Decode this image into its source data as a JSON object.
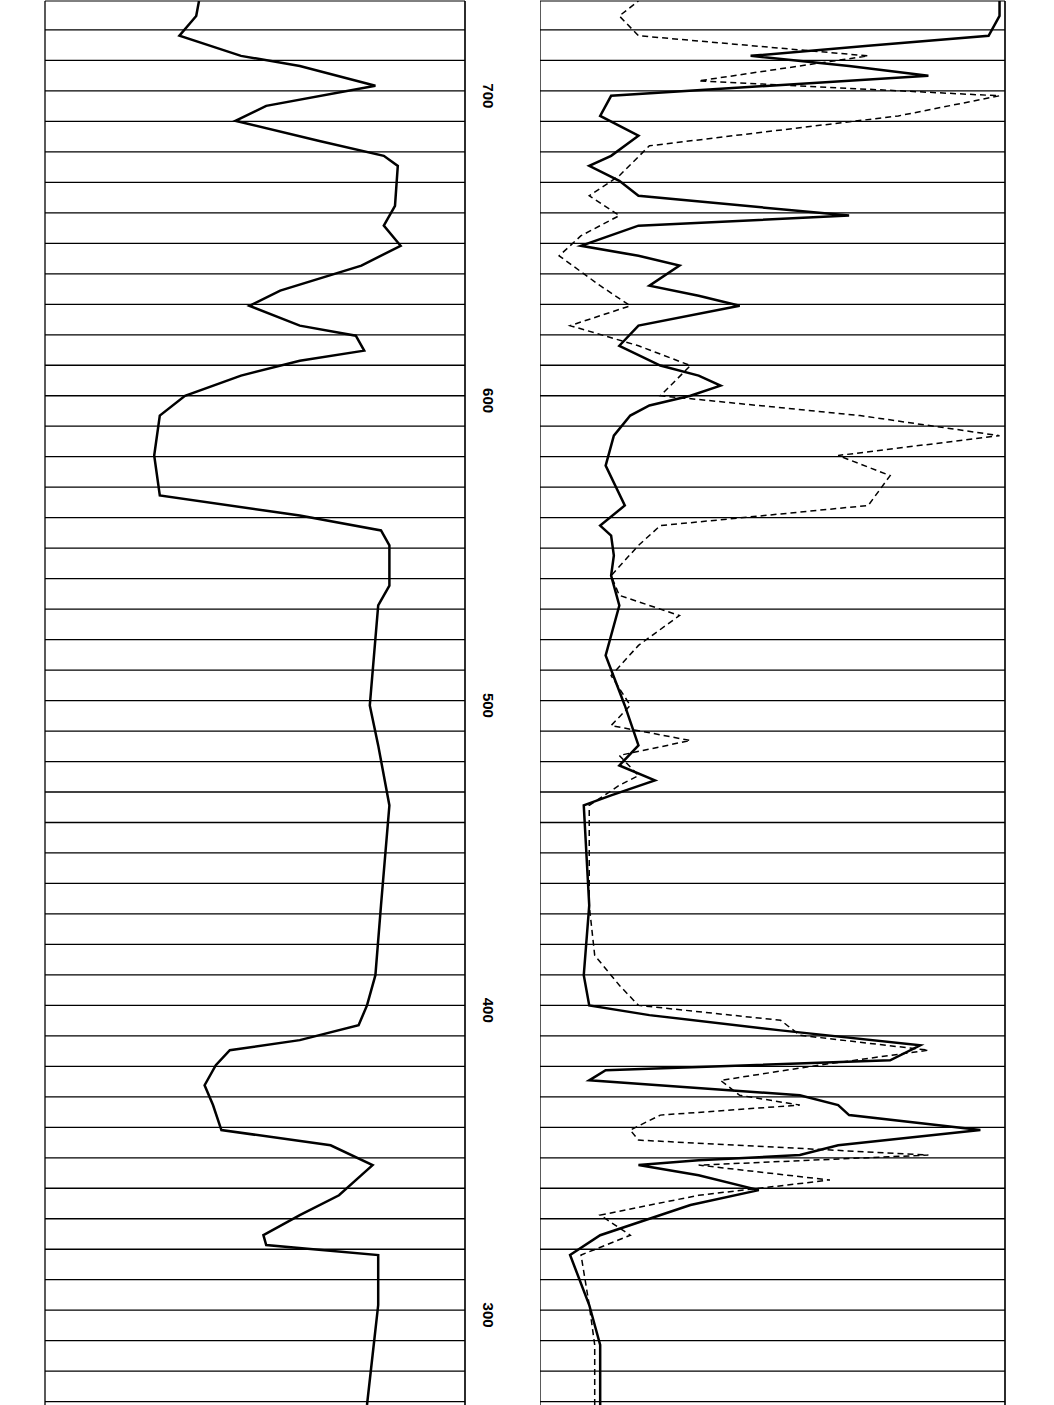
{
  "chart_data": [
    {
      "type": "line",
      "color": "#000000",
      "grid": true,
      "tick_labels": "x",
      "xlim": [
        270.5,
        731.1
      ],
      "xticks": [
        300,
        400,
        500,
        600,
        700
      ],
      "ylim": [
        0,
        15
      ],
      "yticks": [
        0,
        1,
        2,
        3,
        4,
        5,
        6,
        7,
        8,
        9,
        10,
        11,
        12,
        13,
        14,
        15
      ],
      "x": [
        270.5,
        286.9,
        303.3,
        319.7,
        323.0,
        326.2,
        332.8,
        339.3,
        345.9,
        349.2,
        355.7,
        360.7,
        368.9,
        375.4,
        382.0,
        386.9,
        390.2,
        395.1,
        401.6,
        411.5,
        434.4,
        467.2,
        486.9,
        500.0,
        532.8,
        539.3,
        552.5,
        557.4,
        562.3,
        568.9,
        582.0,
        595.1,
        601.6,
        608.2,
        613.1,
        616.4,
        621.3,
        624.6,
        631.1,
        636.1,
        644.3,
        650.8,
        657.4,
        663.9,
        677.0,
        680.3,
        685.2,
        691.8,
        696.7,
        703.3,
        709.8,
        713.1,
        719.7,
        726.2,
        731.1
      ],
      "values": [
        11.5,
        11.7,
        11.9,
        11.9,
        7.9,
        7.8,
        9.1,
        10.5,
        11.3,
        11.7,
        10.2,
        6.3,
        6.0,
        5.7,
        6.1,
        6.6,
        9.1,
        11.2,
        11.5,
        11.8,
        12.0,
        12.3,
        11.9,
        11.6,
        11.9,
        12.3,
        12.3,
        12.0,
        9.1,
        4.1,
        3.9,
        4.1,
        5.0,
        7.0,
        9.1,
        11.4,
        11.1,
        9.1,
        7.3,
        8.4,
        11.3,
        12.7,
        12.1,
        12.5,
        12.6,
        12.1,
        9.8,
        6.8,
        7.9,
        11.8,
        9.1,
        7.0,
        4.8,
        5.4,
        5.5
      ]
    },
    {
      "type": "line",
      "grid": true,
      "tick_labels": false,
      "xlim": [
        270.5,
        731.1
      ],
      "xticks": [
        300,
        400,
        500,
        600,
        700
      ],
      "ylim": [
        0,
        17
      ],
      "yticks": [
        0,
        1,
        2,
        3,
        4,
        5,
        6,
        7,
        8,
        9,
        10,
        11,
        12,
        13,
        14,
        15,
        16,
        17
      ],
      "series": [
        {
          "color": "#000000",
          "line_style": "solid",
          "x": [
            270.5,
            290.2,
            303.3,
            319.7,
            326.2,
            336.1,
            341.0,
            345.9,
            349.2,
            350.8,
            352.5,
            355.7,
            360.7,
            365.6,
            368.9,
            372.1,
            377.0,
            380.3,
            383.6,
            388.5,
            393.4,
            398.4,
            401.6,
            411.5,
            434.4,
            467.2,
            470.5,
            475.4,
            480.3,
            486.9,
            500.0,
            516.4,
            532.8,
            542.6,
            549.2,
            555.7,
            559.0,
            565.6,
            578.7,
            588.5,
            595.1,
            598.4,
            601.6,
            604.9,
            608.2,
            611.5,
            618.0,
            624.6,
            631.1,
            634.4,
            637.7,
            644.3,
            647.5,
            650.8,
            657.4,
            660.7,
            667.2,
            672.1,
            677.0,
            680.3,
            686.9,
            693.4,
            700.0,
            706.6,
            709.8,
            713.1,
            716.4,
            719.7,
            726.2,
            731.1
          ],
          "values": [
            2.2,
            2.2,
            1.8,
            1.1,
            2.2,
            5.5,
            8.0,
            5.8,
            3.6,
            5.8,
            9.5,
            10.9,
            16.1,
            11.3,
            10.9,
            9.5,
            1.8,
            2.4,
            12.8,
            13.9,
            8.8,
            4.0,
            1.8,
            1.6,
            1.8,
            1.6,
            2.6,
            4.2,
            2.9,
            3.6,
            3.1,
            2.4,
            2.9,
            2.6,
            2.7,
            2.6,
            2.2,
            3.1,
            2.4,
            2.7,
            3.3,
            4.0,
            5.5,
            6.6,
            5.8,
            4.4,
            2.9,
            3.6,
            7.3,
            5.8,
            4.0,
            5.1,
            3.6,
            1.5,
            3.6,
            11.3,
            3.6,
            2.9,
            1.8,
            2.6,
            3.6,
            2.2,
            2.6,
            14.2,
            11.3,
            7.7,
            12.0,
            16.4,
            16.8,
            16.8
          ]
        },
        {
          "color": "#000000",
          "line_style": "dashed",
          "x": [
            270.5,
            290.2,
            303.3,
            319.7,
            326.2,
            332.8,
            339.3,
            344.3,
            349.2,
            352.5,
            357.4,
            360.7,
            365.6,
            368.9,
            372.1,
            377.0,
            382.0,
            386.9,
            391.8,
            396.7,
            401.6,
            408.2,
            418.0,
            434.4,
            454.1,
            467.2,
            473.8,
            477.0,
            483.6,
            488.5,
            493.4,
            500.0,
            509.8,
            519.7,
            529.5,
            536.1,
            542.6,
            552.5,
            559.0,
            565.6,
            575.4,
            582.0,
            588.5,
            595.1,
            601.6,
            611.5,
            618.0,
            624.6,
            631.1,
            637.7,
            647.5,
            654.1,
            660.7,
            667.2,
            673.8,
            683.6,
            693.4,
            700.0,
            704.9,
            713.1,
            719.7,
            726.2,
            731.1
          ],
          "values": [
            2.0,
            2.0,
            1.8,
            1.5,
            3.3,
            2.2,
            5.8,
            10.6,
            5.8,
            14.2,
            3.6,
            3.3,
            4.4,
            9.5,
            7.3,
            6.6,
            10.2,
            14.2,
            9.5,
            8.8,
            3.6,
            2.9,
            2.0,
            1.8,
            1.8,
            1.8,
            2.9,
            3.6,
            2.9,
            5.5,
            2.6,
            3.3,
            2.6,
            3.6,
            5.1,
            2.9,
            2.6,
            3.6,
            4.4,
            12.0,
            12.8,
            10.9,
            16.8,
            11.7,
            4.4,
            5.5,
            3.6,
            1.1,
            3.3,
            2.2,
            0.7,
            1.5,
            2.9,
            1.8,
            2.9,
            4.0,
            13.1,
            16.8,
            5.8,
            12.0,
            3.6,
            2.9,
            3.6
          ]
        }
      ]
    }
  ]
}
